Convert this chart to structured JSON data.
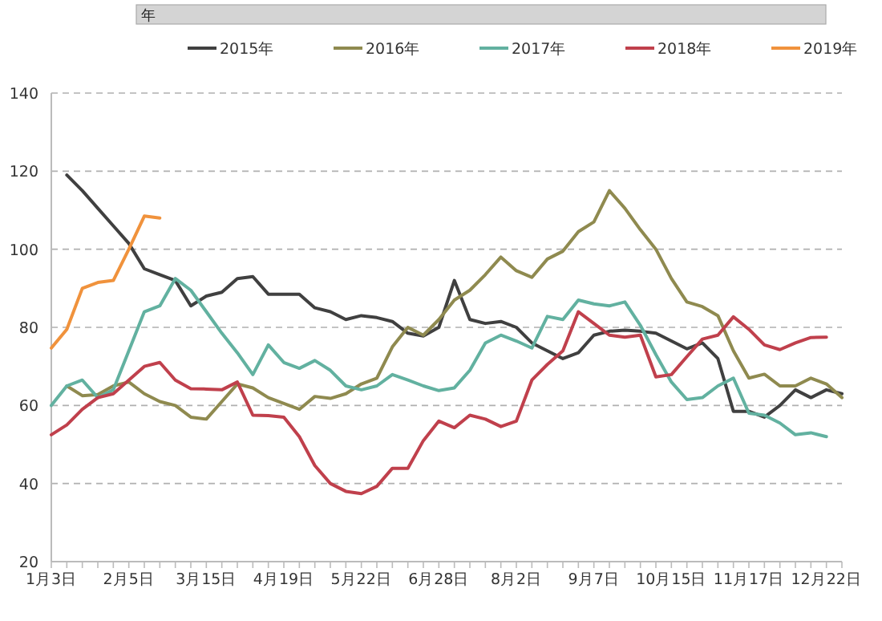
{
  "chart_data": {
    "type": "line",
    "legend_title": "年",
    "legend": "top",
    "grid": "y",
    "marker": "none",
    "line_style": "solid",
    "categories": [
      "1月3日",
      null,
      null,
      null,
      null,
      "2月5日",
      null,
      null,
      null,
      null,
      "3月15日",
      null,
      null,
      null,
      null,
      "4月19日",
      null,
      null,
      null,
      null,
      "5月22日",
      null,
      null,
      null,
      null,
      "6月28日",
      null,
      null,
      null,
      null,
      "8月2日",
      null,
      null,
      null,
      null,
      "9月7日",
      null,
      null,
      null,
      null,
      "10月15日",
      null,
      null,
      null,
      null,
      "11月17日",
      null,
      null,
      null,
      null,
      "12月22日",
      null
    ],
    "ylim": [
      20,
      140
    ],
    "yticks": [
      20,
      40,
      60,
      80,
      100,
      120,
      140
    ],
    "series": [
      {
        "name": "2015年",
        "color": "#404040",
        "values": [
          null,
          119,
          115,
          110.5,
          106,
          101.5,
          95,
          93.5,
          92,
          85.5,
          88,
          89,
          92.5,
          93,
          88.5,
          88.5,
          88.5,
          85,
          84,
          82,
          83,
          82.5,
          81.5,
          78.5,
          77.8,
          80,
          92,
          82,
          81,
          81.5,
          80,
          76,
          74,
          72,
          73.5,
          78,
          79,
          79.3,
          79,
          78.5,
          76.5,
          74.5,
          76,
          72,
          58.5,
          58.5,
          57,
          60,
          64,
          62,
          64,
          63
        ]
      },
      {
        "name": "2016年",
        "color": "#8f8a4f",
        "values": [
          null,
          65,
          62.5,
          62.8,
          65,
          66,
          63,
          61,
          60,
          57,
          56.5,
          61,
          65.5,
          64.5,
          62,
          60.5,
          59,
          62.3,
          61.8,
          63,
          65.5,
          67,
          75,
          80,
          78,
          82,
          87,
          89.5,
          93.5,
          98,
          94.5,
          92.8,
          97.5,
          99.5,
          104.5,
          107,
          115,
          110.5,
          105,
          100,
          92.5,
          86.5,
          85.3,
          83,
          74,
          67,
          68,
          65,
          65,
          67,
          65.5,
          62
        ]
      },
      {
        "name": "2017年",
        "color": "#62b1a0",
        "values": [
          60,
          65,
          66.5,
          62,
          64,
          74,
          84,
          85.5,
          92.5,
          89.5,
          84,
          78.5,
          73.5,
          67.9,
          75.5,
          71,
          69.5,
          71.5,
          69,
          65,
          64,
          65,
          67.9,
          66.5,
          65,
          63.8,
          64.5,
          69,
          76,
          78,
          76.5,
          74.7,
          82.8,
          82,
          87,
          86,
          85.5,
          86.5,
          80.5,
          73,
          66,
          61.5,
          62,
          65,
          67,
          58,
          57.5,
          55.5,
          52.5,
          53,
          52,
          null
        ]
      },
      {
        "name": "2018年",
        "color": "#c0404c",
        "values": [
          52.5,
          55,
          59,
          62,
          63,
          66.5,
          70,
          71,
          66.5,
          64.3,
          64.2,
          64,
          66,
          57.5,
          57.4,
          57,
          52,
          44.6,
          40,
          38,
          37.4,
          39.3,
          43.9,
          43.9,
          51,
          56,
          54.3,
          57.5,
          56.5,
          54.6,
          56,
          66.5,
          70.5,
          74,
          84,
          81,
          78,
          77.5,
          78,
          67.3,
          67.9,
          72.5,
          77,
          78,
          82.7,
          79.5,
          75.5,
          74.3,
          76,
          77.4,
          77.5,
          null
        ]
      },
      {
        "name": "2019年",
        "color": "#f0923c",
        "values": [
          74.7,
          79.5,
          90,
          91.5,
          92,
          100,
          108.5,
          108,
          null,
          null,
          null,
          null,
          null,
          null,
          null,
          null,
          null,
          null,
          null,
          null,
          null,
          null,
          null,
          null,
          null,
          null,
          null,
          null,
          null,
          null,
          null,
          null,
          null,
          null,
          null,
          null,
          null,
          null,
          null,
          null,
          null,
          null,
          null,
          null,
          null,
          null,
          null,
          null,
          null,
          null,
          null,
          null
        ]
      }
    ]
  }
}
